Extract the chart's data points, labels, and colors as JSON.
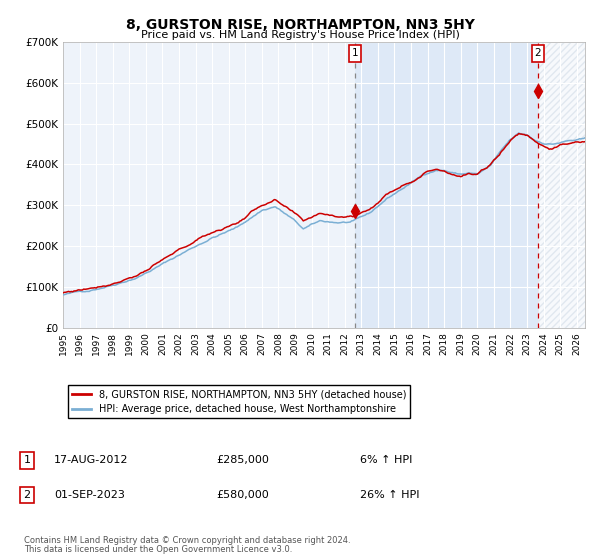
{
  "title": "8, GURSTON RISE, NORTHAMPTON, NN3 5HY",
  "subtitle": "Price paid vs. HM Land Registry's House Price Index (HPI)",
  "ylim": [
    0,
    700000
  ],
  "xlim_start": 1995.0,
  "xlim_end": 2026.5,
  "hpi_color": "#7bafd4",
  "price_color": "#cc0000",
  "bg_color": "#eef3fa",
  "sale1_date": 2012.622,
  "sale1_price": 285000,
  "sale2_date": 2023.667,
  "sale2_price": 580000,
  "footnote1": "Contains HM Land Registry data © Crown copyright and database right 2024.",
  "footnote2": "This data is licensed under the Open Government Licence v3.0.",
  "legend1": "8, GURSTON RISE, NORTHAMPTON, NN3 5HY (detached house)",
  "legend2": "HPI: Average price, detached house, West Northamptonshire",
  "ann1_date": "17-AUG-2012",
  "ann1_price": "£285,000",
  "ann1_hpi": "6% ↑ HPI",
  "ann2_date": "01-SEP-2023",
  "ann2_price": "£580,000",
  "ann2_hpi": "26% ↑ HPI",
  "hpi_anchors_x": [
    1995.0,
    1996.5,
    1998.0,
    1999.5,
    2001.0,
    2002.5,
    2004.0,
    2005.5,
    2007.0,
    2007.8,
    2008.8,
    2009.5,
    2010.5,
    2011.5,
    2012.5,
    2013.5,
    2014.5,
    2015.5,
    2016.5,
    2017.0,
    2017.5,
    2018.0,
    2018.5,
    2019.0,
    2019.5,
    2020.0,
    2020.8,
    2021.5,
    2022.0,
    2022.5,
    2023.0,
    2023.5,
    2024.0,
    2024.5,
    2025.0,
    2025.5,
    2026.5
  ],
  "hpi_anchors_y": [
    80000,
    90000,
    108000,
    130000,
    162000,
    195000,
    228000,
    252000,
    295000,
    305000,
    275000,
    248000,
    265000,
    262000,
    263000,
    280000,
    315000,
    342000,
    368000,
    380000,
    388000,
    388000,
    382000,
    378000,
    382000,
    378000,
    398000,
    435000,
    458000,
    472000,
    468000,
    455000,
    450000,
    448000,
    452000,
    456000,
    458000
  ],
  "price_anchors_x": [
    1995.0,
    1996.5,
    1998.0,
    1999.5,
    2001.0,
    2002.5,
    2004.0,
    2005.5,
    2007.0,
    2007.8,
    2008.8,
    2009.5,
    2010.5,
    2011.5,
    2012.5,
    2013.5,
    2014.5,
    2015.5,
    2016.5,
    2017.0,
    2017.5,
    2018.0,
    2018.5,
    2019.0,
    2019.5,
    2020.0,
    2020.8,
    2021.5,
    2022.0,
    2022.5,
    2023.0,
    2023.5,
    2024.0,
    2024.5,
    2025.0,
    2025.5,
    2026.5
  ],
  "price_anchors_y": [
    85000,
    97000,
    115000,
    140000,
    172000,
    205000,
    238000,
    262000,
    308000,
    318000,
    285000,
    258000,
    278000,
    275000,
    276000,
    295000,
    330000,
    358000,
    382000,
    395000,
    403000,
    400000,
    395000,
    390000,
    396000,
    392000,
    415000,
    452000,
    478000,
    495000,
    492000,
    478000,
    468000,
    462000,
    468000,
    472000,
    475000
  ]
}
